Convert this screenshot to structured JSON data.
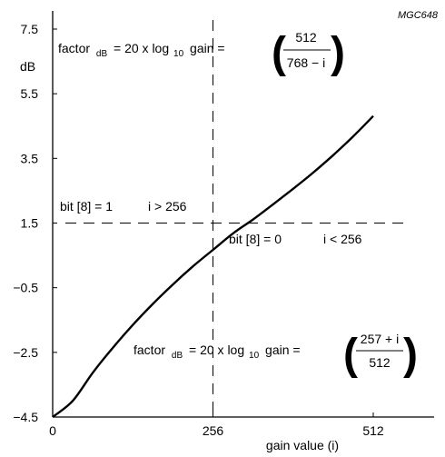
{
  "figure_code": "MGC648",
  "chart_data": {
    "type": "line",
    "title": "",
    "xlabel": "gain value (i)",
    "ylabel": "dB",
    "xlim": [
      0,
      580
    ],
    "ylim": [
      -4.5,
      8
    ],
    "x_ticks": [
      0,
      256,
      512
    ],
    "x_tick_labels": [
      "0",
      "256",
      "512"
    ],
    "y_ticks": [
      7.5,
      5.5,
      3.5,
      1.5,
      -0.5,
      -2.5,
      -4.5
    ],
    "y_tick_labels": [
      "7.5",
      "5.5",
      "3.5",
      "1.5",
      "−0.5",
      "−2.5",
      "−4.5"
    ],
    "grid": false,
    "reference_lines": {
      "vertical_x": 256,
      "horizontal_y": 1.5,
      "style": "dashed"
    },
    "series": [
      {
        "formula_low": "20*log10((257+i)/512)",
        "formula_high": "20*log10(512/(768-i))",
        "x": [
          0,
          32,
          64,
          96,
          128,
          160,
          192,
          224,
          256,
          288,
          320,
          352,
          384,
          416,
          448,
          480,
          512
        ],
        "values": [
          -4.96,
          -4.0,
          -3.13,
          -2.36,
          -1.65,
          -1.0,
          -0.4,
          0.16,
          0.67,
          1.18,
          1.61,
          2.08,
          2.56,
          3.06,
          3.6,
          4.18,
          4.81
        ]
      }
    ],
    "annotations": {
      "upper_formula": {
        "prefix": "factor",
        "sub": "dB",
        "middle": "= 20 x log",
        "log_sub": "10",
        "suffix": "gain =",
        "numerator": "512",
        "denominator": "768 − i"
      },
      "lower_formula": {
        "prefix": "factor",
        "sub": "dB",
        "middle": "= 20 x log",
        "log_sub": "10",
        "suffix": "gain =",
        "numerator": "257 + i",
        "denominator": "512"
      },
      "left_condition": {
        "bit": "bit [8] = 1",
        "range": "i > 256"
      },
      "right_condition": {
        "bit": "bit [8] = 0",
        "range": "i < 256"
      }
    }
  }
}
